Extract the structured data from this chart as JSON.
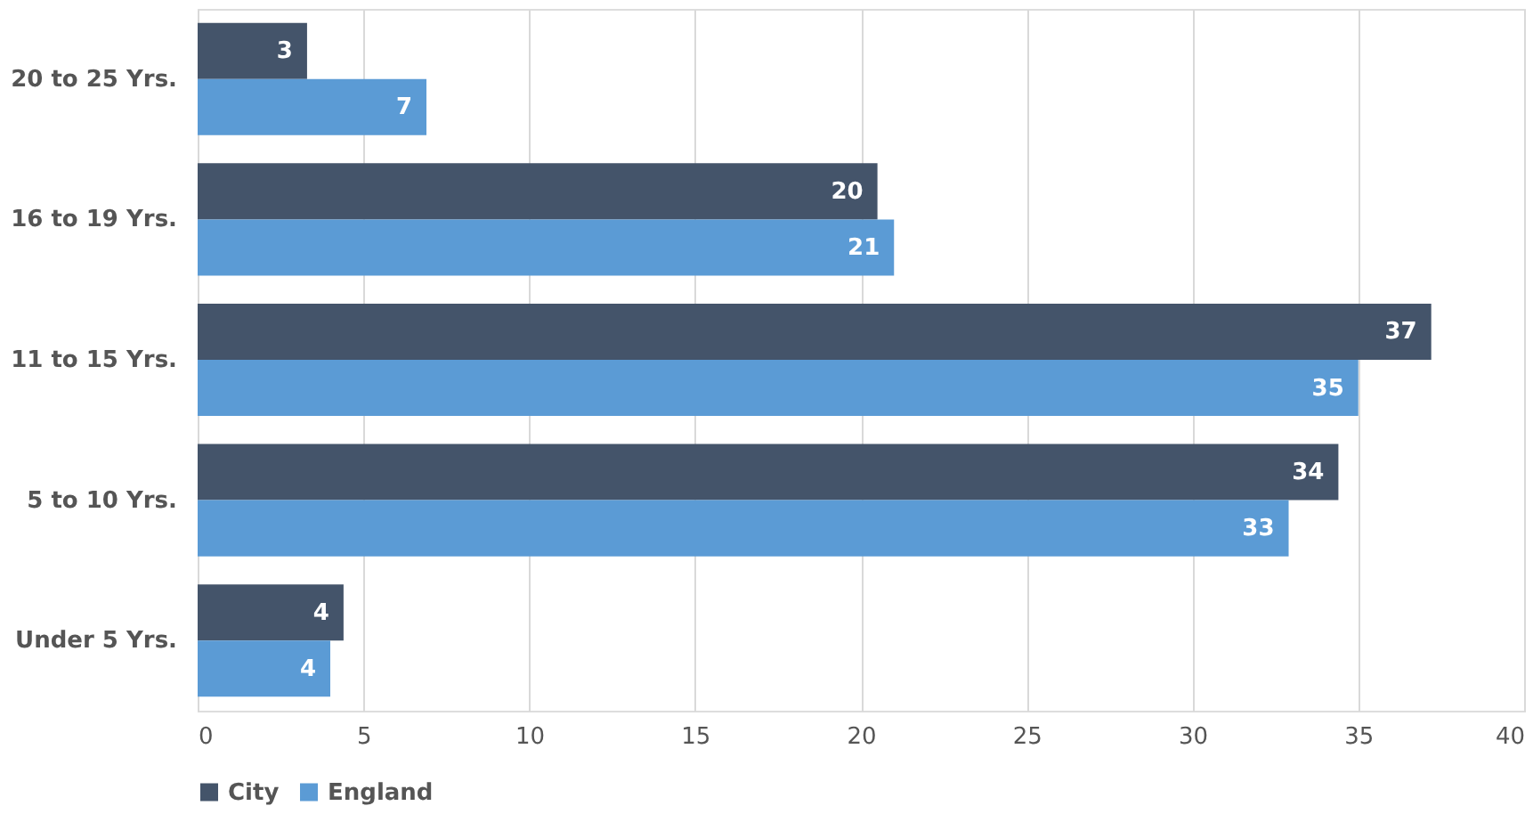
{
  "chart_data": {
    "type": "bar",
    "orientation": "horizontal",
    "categories": [
      "20 to 25 Yrs.",
      "16 to 19 Yrs.",
      "11 to 15 Yrs.",
      "5 to 10 Yrs.",
      "Under 5 Yrs."
    ],
    "series": [
      {
        "name": "City",
        "color": "#44546a",
        "values": [
          3.3,
          20.5,
          37.2,
          34.4,
          4.4
        ],
        "value_labels": [
          "3",
          "20",
          "37",
          "34",
          "4"
        ]
      },
      {
        "name": "England",
        "color": "#5b9bd5",
        "values": [
          6.9,
          21.0,
          35.0,
          32.9,
          4.0
        ],
        "value_labels": [
          "7",
          "21",
          "35",
          "33",
          "4"
        ]
      }
    ],
    "xlim": [
      0,
      40
    ],
    "xticks": [
      0,
      5,
      10,
      15,
      20,
      25,
      30,
      35,
      40
    ],
    "grid": "x",
    "legend": "bottom"
  }
}
